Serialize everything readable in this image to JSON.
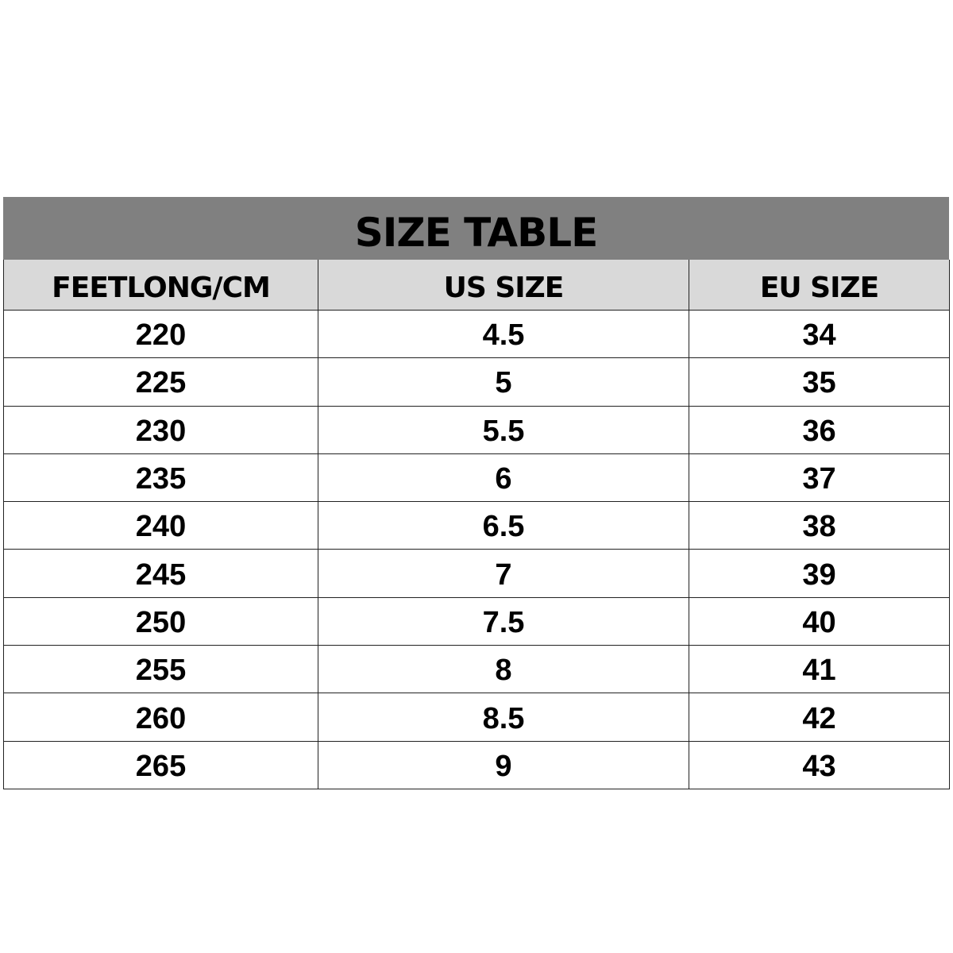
{
  "title": "SIZE TABLE",
  "columns": [
    "FEETLONG/CM",
    "US SIZE",
    "EU SIZE"
  ],
  "rows": [
    [
      "220",
      "4.5",
      "34"
    ],
    [
      "225",
      "5",
      "35"
    ],
    [
      "230",
      "5.5",
      "36"
    ],
    [
      "235",
      "6",
      "37"
    ],
    [
      "240",
      "6.5",
      "38"
    ],
    [
      "245",
      "7",
      "39"
    ],
    [
      "250",
      "7.5",
      "40"
    ],
    [
      "255",
      "8",
      "41"
    ],
    [
      "260",
      "8.5",
      "42"
    ],
    [
      "265",
      "9",
      "43"
    ]
  ],
  "colors": {
    "title_bg": "#808080",
    "header_bg": "#d9d9d9"
  }
}
